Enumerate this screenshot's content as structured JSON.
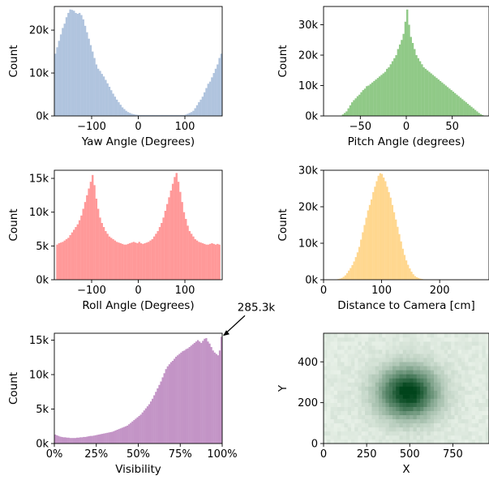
{
  "chart_data": [
    {
      "type": "bar",
      "xlabel": "Yaw Angle (Degrees)",
      "ylabel": "Count",
      "color": "#b0c4de",
      "xlim": [
        -180,
        180
      ],
      "ylim": [
        0,
        25500
      ],
      "xticks": [
        -100,
        0,
        100
      ],
      "xtick_labels": [
        "−100",
        "0",
        "100"
      ],
      "yticks": [
        0,
        10000,
        20000
      ],
      "ytick_labels": [
        "0k",
        "10k",
        "20k"
      ],
      "bin_width": 4,
      "x": [
        -180,
        -176,
        -172,
        -168,
        -164,
        -160,
        -156,
        -152,
        -148,
        -144,
        -140,
        -136,
        -132,
        -128,
        -124,
        -120,
        -116,
        -112,
        -108,
        -104,
        -100,
        -96,
        -92,
        -88,
        -84,
        -80,
        -76,
        -72,
        -68,
        -64,
        -60,
        -56,
        -52,
        -48,
        -44,
        -40,
        -36,
        -32,
        -28,
        -24,
        -20,
        -16,
        -12,
        -8,
        -4,
        0,
        4,
        8,
        12,
        16,
        20,
        24,
        28,
        32,
        36,
        40,
        44,
        48,
        52,
        56,
        60,
        64,
        68,
        72,
        76,
        80,
        84,
        88,
        92,
        96,
        100,
        104,
        108,
        112,
        116,
        120,
        124,
        128,
        132,
        136,
        140,
        144,
        148,
        152,
        156,
        160,
        164,
        168,
        172,
        176
      ],
      "values": [
        14500,
        16000,
        17500,
        19000,
        20500,
        21500,
        23000,
        24000,
        24800,
        24700,
        24500,
        24000,
        23800,
        24000,
        23500,
        22500,
        21000,
        19500,
        18000,
        16500,
        15000,
        13500,
        12000,
        11000,
        10500,
        9800,
        9200,
        8400,
        7600,
        6800,
        6000,
        5200,
        4500,
        3800,
        3200,
        2600,
        2000,
        1600,
        1200,
        900,
        700,
        500,
        400,
        300,
        250,
        200,
        200,
        200,
        200,
        200,
        200,
        200,
        200,
        200,
        200,
        200,
        200,
        200,
        200,
        200,
        200,
        200,
        200,
        200,
        200,
        200,
        200,
        200,
        200,
        200,
        300,
        500,
        700,
        900,
        1200,
        1800,
        2500,
        3200,
        3800,
        4500,
        5500,
        6500,
        7500,
        8000,
        9000,
        10000,
        11000,
        12000,
        13500,
        14500
      ]
    },
    {
      "type": "bar",
      "xlabel": "Pitch Angle (degrees)",
      "ylabel": "Count",
      "color": "#90c987",
      "xlim": [
        -90,
        90
      ],
      "ylim": [
        0,
        36000
      ],
      "xticks": [
        -50,
        0,
        50
      ],
      "xtick_labels": [
        "−50",
        "0",
        "50"
      ],
      "yticks": [
        0,
        10000,
        20000,
        30000
      ],
      "ytick_labels": [
        "0k",
        "10k",
        "20k",
        "30k"
      ],
      "bin_width": 2,
      "x": [
        -90,
        -88,
        -86,
        -84,
        -82,
        -80,
        -78,
        -76,
        -74,
        -72,
        -70,
        -68,
        -66,
        -64,
        -62,
        -60,
        -58,
        -56,
        -54,
        -52,
        -50,
        -48,
        -46,
        -44,
        -42,
        -40,
        -38,
        -36,
        -34,
        -32,
        -30,
        -28,
        -26,
        -24,
        -22,
        -20,
        -18,
        -16,
        -14,
        -12,
        -10,
        -8,
        -6,
        -4,
        -2,
        0,
        2,
        4,
        6,
        8,
        10,
        12,
        14,
        16,
        18,
        20,
        22,
        24,
        26,
        28,
        30,
        32,
        34,
        36,
        38,
        40,
        42,
        44,
        46,
        48,
        50,
        52,
        54,
        56,
        58,
        60,
        62,
        64,
        66,
        68,
        70,
        72,
        74,
        76,
        78,
        80,
        82,
        84,
        86,
        88
      ],
      "values": [
        0,
        0,
        0,
        0,
        0,
        0,
        0,
        0,
        0,
        0,
        500,
        1000,
        1500,
        2500,
        3500,
        4500,
        5200,
        5800,
        6500,
        7000,
        7800,
        8500,
        9000,
        9800,
        10000,
        10500,
        11000,
        11500,
        12000,
        12500,
        13000,
        13500,
        14000,
        14500,
        15500,
        16000,
        17000,
        18000,
        19000,
        20000,
        22000,
        23500,
        25000,
        27000,
        31000,
        35000,
        30000,
        26000,
        24000,
        22000,
        20000,
        19000,
        18000,
        17000,
        16000,
        15500,
        15000,
        14500,
        14000,
        13500,
        13000,
        12500,
        12000,
        11500,
        11000,
        10500,
        10000,
        9500,
        9000,
        8500,
        8000,
        7500,
        7000,
        6500,
        6000,
        5500,
        5000,
        4500,
        4000,
        3500,
        3000,
        2500,
        2000,
        1500,
        1000,
        600,
        300,
        0,
        0,
        0
      ]
    },
    {
      "type": "bar",
      "xlabel": "Roll Angle (Degrees)",
      "ylabel": "Count",
      "color": "#ff9999",
      "xlim": [
        -180,
        180
      ],
      "ylim": [
        0,
        16200
      ],
      "xticks": [
        -100,
        0,
        100
      ],
      "xtick_labels": [
        "−100",
        "0",
        "100"
      ],
      "yticks": [
        0,
        5000,
        10000,
        15000
      ],
      "ytick_labels": [
        "0k",
        "5k",
        "10k",
        "15k"
      ],
      "bin_width": 4,
      "x": [
        -176,
        -172,
        -168,
        -164,
        -160,
        -156,
        -152,
        -148,
        -144,
        -140,
        -136,
        -132,
        -128,
        -124,
        -120,
        -116,
        -112,
        -108,
        -104,
        -100,
        -96,
        -92,
        -88,
        -84,
        -80,
        -76,
        -72,
        -68,
        -64,
        -60,
        -56,
        -52,
        -48,
        -44,
        -40,
        -36,
        -32,
        -28,
        -24,
        -20,
        -16,
        -12,
        -8,
        -4,
        0,
        4,
        8,
        12,
        16,
        20,
        24,
        28,
        32,
        36,
        40,
        44,
        48,
        52,
        56,
        60,
        64,
        68,
        72,
        76,
        80,
        84,
        88,
        92,
        96,
        100,
        104,
        108,
        112,
        116,
        120,
        124,
        128,
        132,
        136,
        140,
        144,
        148,
        152,
        156,
        160,
        164,
        168,
        172
      ],
      "values": [
        5200,
        5400,
        5500,
        5600,
        5800,
        6000,
        6200,
        6600,
        7000,
        7400,
        7800,
        8200,
        8800,
        9500,
        10500,
        11500,
        12500,
        13500,
        14500,
        15500,
        14000,
        12000,
        10500,
        9200,
        8400,
        7800,
        7200,
        6800,
        6400,
        6200,
        6000,
        5800,
        5600,
        5500,
        5400,
        5300,
        5200,
        5200,
        5300,
        5400,
        5500,
        5600,
        5500,
        5400,
        5600,
        5400,
        5300,
        5400,
        5500,
        5600,
        5800,
        6000,
        6400,
        6800,
        7200,
        7800,
        8400,
        9200,
        10200,
        11200,
        12200,
        13200,
        14200,
        15200,
        15800,
        14500,
        13000,
        11500,
        10000,
        9000,
        8000,
        7200,
        6800,
        6400,
        6000,
        5800,
        5600,
        5500,
        5400,
        5300,
        5200,
        5200,
        5300,
        5400,
        5300,
        5200,
        5300,
        5200
      ]
    },
    {
      "type": "bar",
      "xlabel": "Distance to Camera [cm]",
      "ylabel": "Count",
      "color": "#ffd78f",
      "xlim": [
        0,
        285
      ],
      "ylim": [
        0,
        30000
      ],
      "xticks": [
        0,
        100,
        200
      ],
      "xtick_labels": [
        "0",
        "100",
        "200"
      ],
      "yticks": [
        0,
        10000,
        20000,
        30000
      ],
      "ytick_labels": [
        "0k",
        "10k",
        "20k",
        "30k"
      ],
      "bin_width": 3,
      "x": [
        21,
        24,
        27,
        30,
        33,
        36,
        39,
        42,
        45,
        48,
        51,
        54,
        57,
        60,
        63,
        66,
        69,
        72,
        75,
        78,
        81,
        84,
        87,
        90,
        93,
        96,
        99,
        102,
        105,
        108,
        111,
        114,
        117,
        120,
        123,
        126,
        129,
        132,
        135,
        138,
        141,
        144,
        147,
        150,
        153,
        156,
        159,
        162,
        165,
        168,
        171,
        174
      ],
      "values": [
        100,
        200,
        300,
        500,
        800,
        1200,
        1800,
        2500,
        3200,
        4000,
        5000,
        6200,
        7500,
        9000,
        11000,
        13000,
        15000,
        17000,
        19000,
        20500,
        22000,
        24000,
        25500,
        27000,
        28500,
        29200,
        29000,
        28000,
        27000,
        25500,
        24000,
        22500,
        20500,
        18500,
        16500,
        14500,
        12500,
        10500,
        8500,
        6800,
        5300,
        4100,
        3100,
        2200,
        1500,
        1000,
        700,
        500,
        300,
        200,
        100,
        50
      ]
    },
    {
      "type": "bar",
      "xlabel": "Visibility",
      "ylabel": "Count",
      "color": "#c394c6",
      "xlim": [
        0,
        100
      ],
      "ylim": [
        0,
        16000
      ],
      "xticks": [
        0,
        25,
        50,
        75,
        100
      ],
      "xtick_labels": [
        "0%",
        "25%",
        "50%",
        "75%",
        "100%"
      ],
      "yticks": [
        0,
        5000,
        10000,
        15000
      ],
      "ytick_labels": [
        "0k",
        "5k",
        "10k",
        "15k"
      ],
      "bin_width": 1,
      "x": [
        0,
        1,
        2,
        3,
        4,
        5,
        6,
        7,
        8,
        9,
        10,
        11,
        12,
        13,
        14,
        15,
        16,
        17,
        18,
        19,
        20,
        21,
        22,
        23,
        24,
        25,
        26,
        27,
        28,
        29,
        30,
        31,
        32,
        33,
        34,
        35,
        36,
        37,
        38,
        39,
        40,
        41,
        42,
        43,
        44,
        45,
        46,
        47,
        48,
        49,
        50,
        51,
        52,
        53,
        54,
        55,
        56,
        57,
        58,
        59,
        60,
        61,
        62,
        63,
        64,
        65,
        66,
        67,
        68,
        69,
        70,
        71,
        72,
        73,
        74,
        75,
        76,
        77,
        78,
        79,
        80,
        81,
        82,
        83,
        84,
        85,
        86,
        87,
        88,
        89,
        90,
        91,
        92,
        93,
        94,
        95,
        96,
        97,
        98,
        99
      ],
      "values": [
        1300,
        1200,
        1100,
        1000,
        950,
        900,
        900,
        850,
        850,
        800,
        800,
        800,
        800,
        850,
        850,
        900,
        900,
        950,
        950,
        1000,
        1050,
        1100,
        1100,
        1150,
        1200,
        1250,
        1300,
        1350,
        1400,
        1450,
        1500,
        1550,
        1600,
        1650,
        1700,
        1800,
        1900,
        2000,
        2100,
        2200,
        2300,
        2400,
        2500,
        2600,
        2800,
        3000,
        3200,
        3400,
        3600,
        3800,
        4000,
        4200,
        4500,
        4800,
        5100,
        5400,
        5700,
        6100,
        6500,
        7000,
        7500,
        8000,
        8500,
        9000,
        9600,
        10200,
        10800,
        11200,
        11500,
        11800,
        12000,
        12300,
        12600,
        12800,
        13000,
        13200,
        13400,
        13500,
        13700,
        13800,
        14000,
        14200,
        14400,
        14600,
        14800,
        15000,
        14800,
        14600,
        14900,
        15200,
        15300,
        14800,
        14500,
        14000,
        13500,
        13200,
        13000,
        12800,
        13500,
        15500
      ],
      "annotation": {
        "text": "285.3k",
        "x": 100,
        "y": 15500
      }
    },
    {
      "type": "heatmap",
      "xlabel": "X",
      "ylabel": "Y",
      "colormap": "Greens",
      "xlim": [
        0,
        960
      ],
      "ylim": [
        0,
        540
      ],
      "xticks": [
        0,
        250,
        500,
        750
      ],
      "xtick_labels": [
        "0",
        "250",
        "500",
        "750"
      ],
      "yticks": [
        0,
        200,
        400
      ],
      "ytick_labels": [
        "0",
        "200",
        "400"
      ],
      "center": [
        490,
        250
      ],
      "spread": [
        130,
        95
      ]
    }
  ]
}
